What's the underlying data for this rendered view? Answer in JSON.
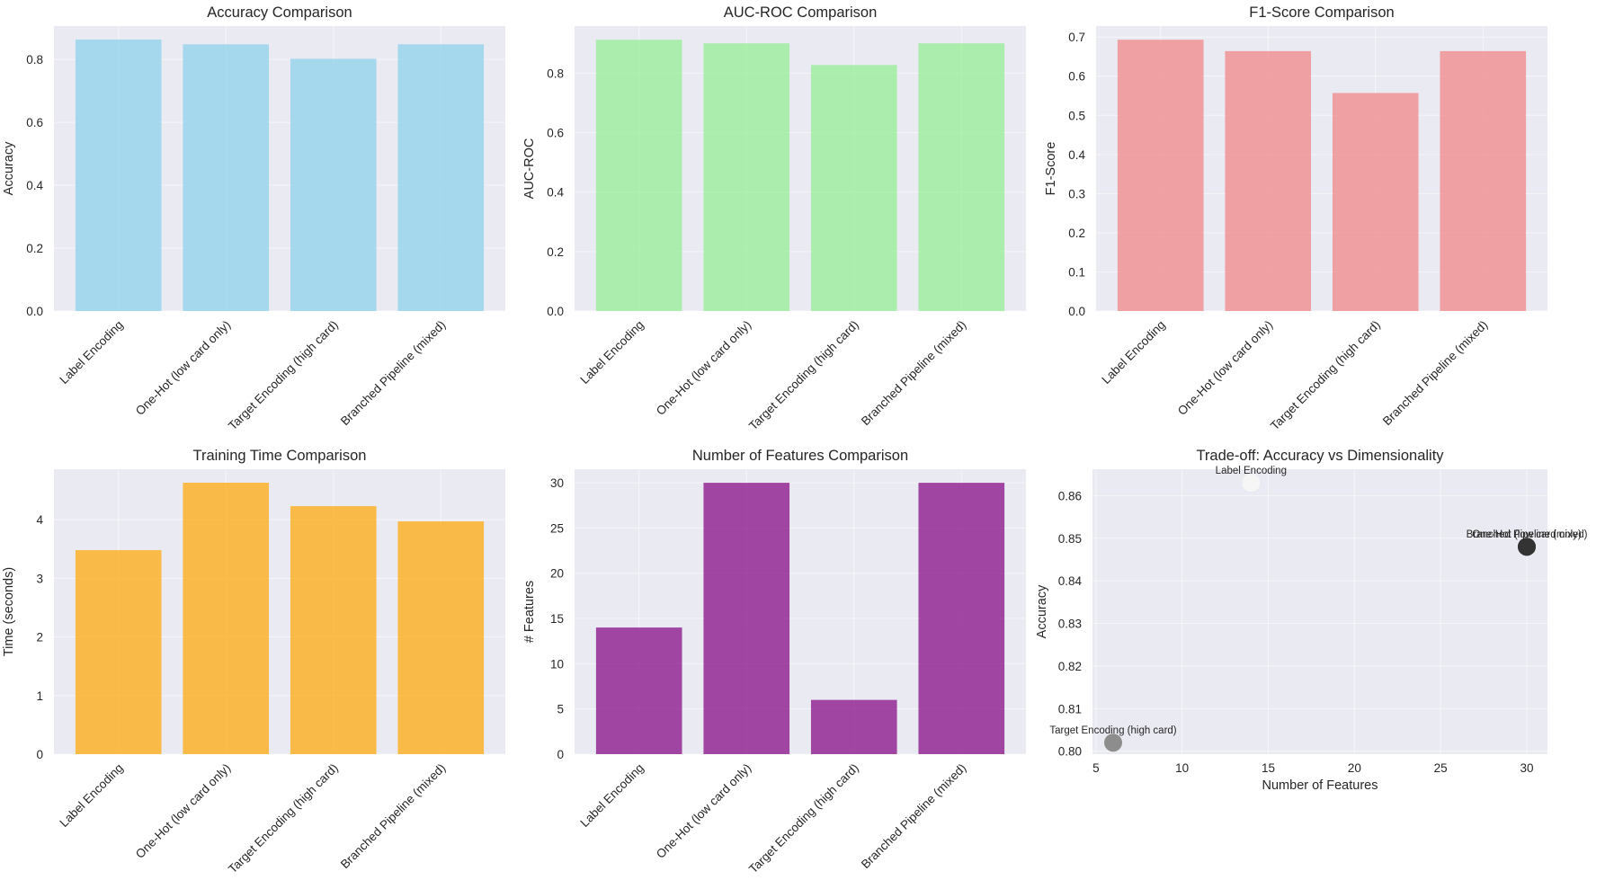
{
  "figure": {
    "background": "#ffffff",
    "panel_background": "#eaeaf2"
  },
  "chart_data": [
    {
      "id": "accuracy",
      "type": "bar",
      "title": "Accuracy Comparison",
      "xlabel": "",
      "ylabel": "Accuracy",
      "categories": [
        "Label Encoding",
        "One-Hot (low card only)",
        "Target Encoding (high card)",
        "Branched Pipeline (mixed)"
      ],
      "values": [
        0.863,
        0.848,
        0.802,
        0.848
      ],
      "ylim": [
        0,
        0.906
      ],
      "yticks": [
        0.0,
        0.2,
        0.4,
        0.6,
        0.8
      ],
      "ytick_labels": [
        "0.0",
        "0.2",
        "0.4",
        "0.6",
        "0.8"
      ],
      "color": "#87ceeb",
      "alpha": 0.7,
      "grid": true,
      "xtick_rotation": 45
    },
    {
      "id": "auc",
      "type": "bar",
      "title": "AUC-ROC Comparison",
      "xlabel": "",
      "ylabel": "AUC-ROC",
      "categories": [
        "Label Encoding",
        "One-Hot (low card only)",
        "Target Encoding (high card)",
        "Branched Pipeline (mixed)"
      ],
      "values": [
        0.912,
        0.9,
        0.827,
        0.9
      ],
      "ylim": [
        0,
        0.958
      ],
      "yticks": [
        0.0,
        0.2,
        0.4,
        0.6,
        0.8
      ],
      "ytick_labels": [
        "0.0",
        "0.2",
        "0.4",
        "0.6",
        "0.8"
      ],
      "color": "#90ee90",
      "alpha": 0.7,
      "grid": true,
      "xtick_rotation": 45
    },
    {
      "id": "f1",
      "type": "bar",
      "title": "F1-Score Comparison",
      "xlabel": "",
      "ylabel": "F1-Score",
      "categories": [
        "Label Encoding",
        "One-Hot (low card only)",
        "Target Encoding (high card)",
        "Branched Pipeline (mixed)"
      ],
      "values": [
        0.693,
        0.664,
        0.557,
        0.664
      ],
      "ylim": [
        0,
        0.728
      ],
      "yticks": [
        0.0,
        0.1,
        0.2,
        0.3,
        0.4,
        0.5,
        0.6,
        0.7
      ],
      "ytick_labels": [
        "0.0",
        "0.1",
        "0.2",
        "0.3",
        "0.4",
        "0.5",
        "0.6",
        "0.7"
      ],
      "color": "#f08080",
      "alpha": 0.7,
      "grid": true,
      "xtick_rotation": 45
    },
    {
      "id": "time",
      "type": "bar",
      "title": "Training Time Comparison",
      "xlabel": "",
      "ylabel": "Time (seconds)",
      "categories": [
        "Label Encoding",
        "One-Hot (low card only)",
        "Target Encoding (high card)",
        "Branched Pipeline (mixed)"
      ],
      "values": [
        3.48,
        4.63,
        4.23,
        3.97
      ],
      "ylim": [
        0,
        4.86
      ],
      "yticks": [
        0,
        1,
        2,
        3,
        4
      ],
      "ytick_labels": [
        "0",
        "1",
        "2",
        "3",
        "4"
      ],
      "color": "#ffa500",
      "alpha": 0.7,
      "grid": true,
      "xtick_rotation": 45
    },
    {
      "id": "features",
      "type": "bar",
      "title": "Number of Features Comparison",
      "xlabel": "",
      "ylabel": "# Features",
      "categories": [
        "Label Encoding",
        "One-Hot (low card only)",
        "Target Encoding (high card)",
        "Branched Pipeline (mixed)"
      ],
      "values": [
        14,
        30,
        6,
        30
      ],
      "ylim": [
        0,
        31.5
      ],
      "yticks": [
        0,
        5,
        10,
        15,
        20,
        25,
        30
      ],
      "ytick_labels": [
        "0",
        "5",
        "10",
        "15",
        "20",
        "25",
        "30"
      ],
      "color": "#800080",
      "alpha": 0.7,
      "grid": true,
      "xtick_rotation": 45
    },
    {
      "id": "tradeoff",
      "type": "scatter",
      "title": "Trade-off: Accuracy vs Dimensionality",
      "xlabel": "Number of Features",
      "ylabel": "Accuracy",
      "points": [
        {
          "label": "Label Encoding",
          "x": 14,
          "y": 0.863,
          "color": "#f7f7f7"
        },
        {
          "label": "One-Hot (low card only)",
          "x": 30,
          "y": 0.848,
          "color": "#333333"
        },
        {
          "label": "Target Encoding (high card)",
          "x": 6,
          "y": 0.802,
          "color": "#888888"
        },
        {
          "label": "Branched Pipeline (mixed)",
          "x": 30,
          "y": 0.848,
          "color": "#333333"
        }
      ],
      "xlim": [
        4.8,
        31.2
      ],
      "ylim": [
        0.7993,
        0.8662
      ],
      "xticks": [
        5,
        10,
        15,
        20,
        25,
        30
      ],
      "xtick_labels": [
        "5",
        "10",
        "15",
        "20",
        "25",
        "30"
      ],
      "yticks": [
        0.8,
        0.81,
        0.82,
        0.83,
        0.84,
        0.85,
        0.86
      ],
      "ytick_labels": [
        "0.80",
        "0.81",
        "0.82",
        "0.83",
        "0.84",
        "0.85",
        "0.86"
      ],
      "grid": true
    }
  ]
}
